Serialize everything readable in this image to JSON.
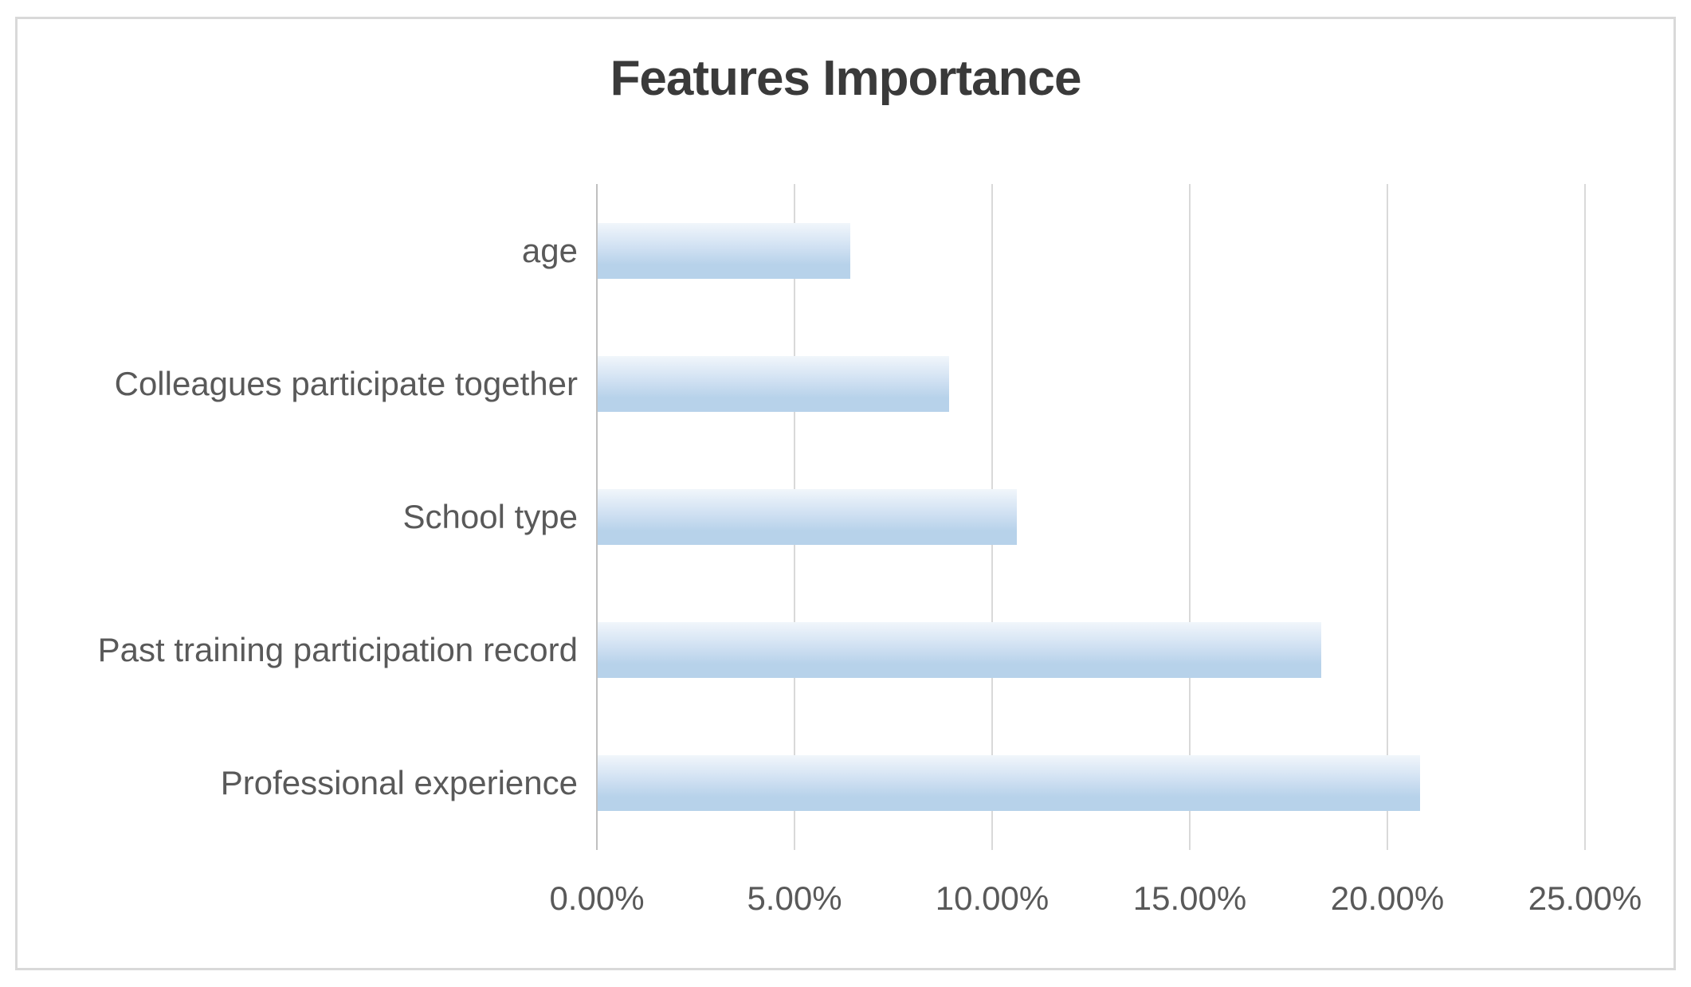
{
  "chart_data": {
    "type": "bar",
    "orientation": "horizontal",
    "title": "Features Importance",
    "categories": [
      "age",
      "Colleagues participate together",
      "School type",
      "Past training participation record",
      "Professional experience"
    ],
    "values": [
      6.4,
      8.9,
      10.6,
      18.3,
      20.8
    ],
    "unit": "%",
    "x_tick_labels": [
      "0.00%",
      "5.00%",
      "10.00%",
      "15.00%",
      "20.00%",
      "25.00%"
    ],
    "xlim": [
      0,
      25
    ],
    "xlabel": "",
    "ylabel": "",
    "gridlines": "vertical",
    "legend": "none"
  },
  "style": {
    "bar_gradient_top": "#f1f6fb",
    "bar_gradient_mid": "#cfe0f2",
    "bar_gradient_bottom": "#b7d2ea",
    "gridline_color": "#d9d9d9",
    "axis_line_color": "#c0c0c0",
    "title_color": "#3a3a3a",
    "label_color": "#595959",
    "frame_border_color": "#d9d9d9",
    "background": "#ffffff"
  }
}
